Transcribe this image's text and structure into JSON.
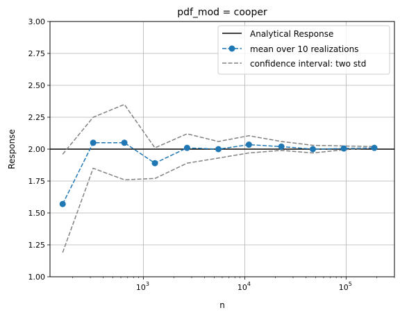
{
  "chart_data": {
    "type": "line",
    "title": "pdf_mod = cooper",
    "xlabel": "n",
    "ylabel": "Response",
    "xscale": "log",
    "xlim": [
      120,
      300000
    ],
    "ylim": [
      1.0,
      3.0
    ],
    "grid": true,
    "legend_position": "upper right",
    "y_ticks": [
      "1.00",
      "1.25",
      "1.50",
      "1.75",
      "2.00",
      "2.25",
      "2.50",
      "2.75",
      "3.00"
    ],
    "x_ticks": [
      {
        "value": 1000,
        "base": "10",
        "exp": "3"
      },
      {
        "value": 10000,
        "base": "10",
        "exp": "4"
      },
      {
        "value": 100000,
        "base": "10",
        "exp": "5"
      }
    ],
    "x": [
      160,
      320,
      650,
      1300,
      2700,
      5500,
      11000,
      23000,
      47000,
      95000,
      190000
    ],
    "series": [
      {
        "name": "Analytical Response",
        "style": "solid",
        "color": "#000000",
        "constant": 2.0
      },
      {
        "name": "mean over 10 realizations",
        "style": "dashed-marker",
        "color": "#1f77b4",
        "values": [
          1.57,
          2.05,
          2.05,
          1.89,
          2.01,
          2.0,
          2.035,
          2.02,
          2.0,
          2.005,
          2.01
        ]
      },
      {
        "name": "confidence interval: two std",
        "style": "dashed",
        "color": "#808080",
        "upper": [
          1.96,
          2.25,
          2.35,
          2.01,
          2.12,
          2.06,
          2.105,
          2.06,
          2.03,
          2.025,
          2.02
        ],
        "lower": [
          1.19,
          1.85,
          1.76,
          1.77,
          1.89,
          1.93,
          1.97,
          1.99,
          1.97,
          1.995,
          2.01
        ]
      }
    ]
  }
}
